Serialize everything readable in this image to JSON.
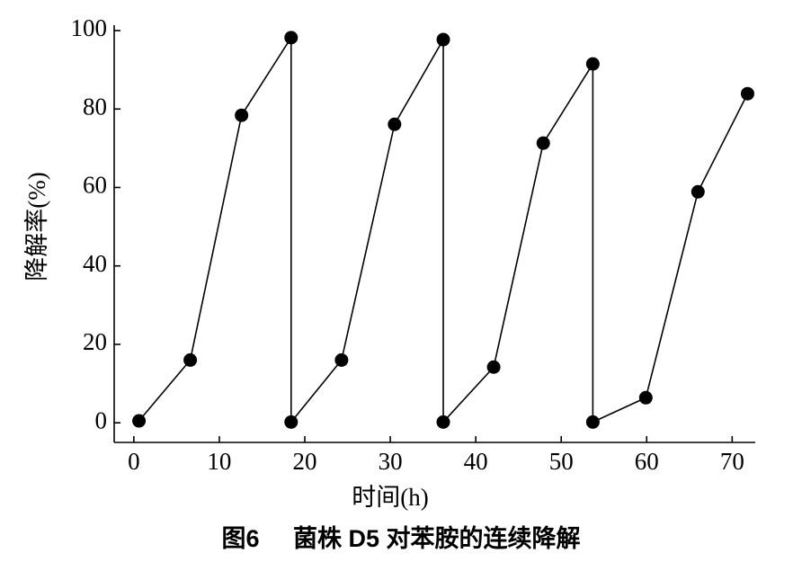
{
  "chart_data": {
    "type": "line",
    "title": "图6     菌株 D5 对苯胺的连续降解",
    "xlabel": "时间(h)",
    "ylabel": "降解率(%)",
    "x": [
      0.6,
      6.6,
      12.6,
      18.4,
      18.4,
      24.3,
      30.5,
      36.2,
      36.2,
      42.1,
      47.9,
      53.7,
      53.7,
      59.9,
      66,
      71.8
    ],
    "series": [
      {
        "name": null,
        "color": "#000000",
        "values": [
          0.5,
          16,
          78.4,
          98.2,
          0.2,
          16,
          76.1,
          97.7,
          0.2,
          14.2,
          71.3,
          91.5,
          0.2,
          6.4,
          58.9,
          83.9
        ]
      }
    ],
    "xlim": [
      -2.3,
      72.7
    ],
    "ylim": [
      -5,
      100
    ],
    "xticks": [
      0,
      10,
      20,
      30,
      40,
      50,
      60,
      70
    ],
    "yticks": [
      0,
      20,
      40,
      60,
      80,
      100
    ]
  }
}
